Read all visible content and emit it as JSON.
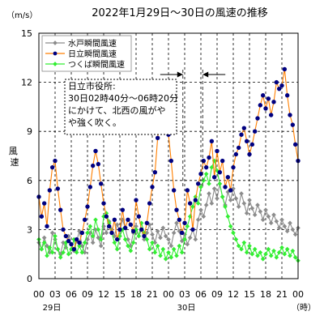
{
  "chart_data": {
    "type": "line",
    "title": "2022年1月29日～30日の風速の推移",
    "unit_label": "（m/s）",
    "ylabel": "風速",
    "xunit_label": "（時）",
    "ylim": [
      0,
      15
    ],
    "yticks": [
      0,
      3,
      6,
      9,
      12,
      15
    ],
    "grid": true,
    "x_ticks": [
      "00",
      "03",
      "06",
      "09",
      "12",
      "15",
      "18",
      "21",
      "00",
      "03",
      "06",
      "09",
      "12",
      "15",
      "18",
      "21",
      "00"
    ],
    "date_labels": [
      "29日",
      "30日"
    ],
    "legend_position": "top-left",
    "annotation": {
      "lines": [
        "日立市役所:",
        "30日02時40分～06時20分",
        "にかけて、北西の風がや",
        "や強く吹く。"
      ]
    },
    "x": [
      0.0,
      0.5,
      1.0,
      1.5,
      2.0,
      2.5,
      3.0,
      3.5,
      4.0,
      4.5,
      5.0,
      5.5,
      6.0,
      6.5,
      7.0,
      7.5,
      8.0,
      8.5,
      9.0,
      9.5,
      10.0,
      10.5,
      11.0,
      11.5,
      12.0,
      12.5,
      13.0,
      13.5,
      14.0,
      14.5,
      15.0,
      15.5,
      16.0,
      16.5,
      17.0,
      17.5,
      18.0,
      18.5,
      19.0,
      19.5,
      20.0,
      20.5,
      21.0,
      21.5,
      22.0,
      22.5,
      23.0,
      23.5,
      24.0,
      24.5,
      25.0,
      25.5,
      26.0,
      26.5,
      27.0,
      27.5,
      28.0,
      28.5,
      29.0,
      29.5,
      30.0,
      30.5,
      31.0,
      31.5,
      32.0,
      32.5,
      33.0,
      33.5,
      34.0,
      34.5,
      35.0,
      35.5,
      36.0,
      36.5,
      37.0,
      37.5,
      38.0,
      38.5,
      39.0,
      39.5,
      40.0,
      40.5,
      41.0,
      41.5,
      42.0,
      42.5,
      43.0,
      43.5,
      44.0,
      44.5,
      45.0,
      45.5,
      46.0,
      46.5,
      47.0,
      47.5,
      48.0
    ],
    "series": [
      {
        "name": "水戸瞬間風速",
        "color": "#8c8c8c",
        "values": [
          2.2,
          1.8,
          2.5,
          2.0,
          1.6,
          2.8,
          2.4,
          1.8,
          1.5,
          2.2,
          1.9,
          2.6,
          2.1,
          1.7,
          2.3,
          2.9,
          2.0,
          1.6,
          2.4,
          2.8,
          2.2,
          3.0,
          2.5,
          2.0,
          3.2,
          2.8,
          3.5,
          3.0,
          2.6,
          3.3,
          2.9,
          3.6,
          3.1,
          2.4,
          2.0,
          2.8,
          3.2,
          2.6,
          3.0,
          2.4,
          2.8,
          3.3,
          2.7,
          2.2,
          2.9,
          2.5,
          3.1,
          2.6,
          2.4,
          2.0,
          2.8,
          3.4,
          2.9,
          2.3,
          2.7,
          2.1,
          2.5,
          3.0,
          2.4,
          3.6,
          4.2,
          3.8,
          4.5,
          5.2,
          4.6,
          5.5,
          4.9,
          5.8,
          5.0,
          4.5,
          5.3,
          4.8,
          5.5,
          4.9,
          4.4,
          5.2,
          4.6,
          4.0,
          4.8,
          4.3,
          3.9,
          4.5,
          4.1,
          3.6,
          4.2,
          3.8,
          3.4,
          3.9,
          3.5,
          3.1,
          3.6,
          3.2,
          2.9,
          3.4,
          3.0,
          2.7,
          3.1
        ]
      },
      {
        "name": "日立瞬間風速",
        "color": "#ff7f00",
        "marker": "#000080",
        "values": [
          5.0,
          3.8,
          4.6,
          3.2,
          5.4,
          6.8,
          7.2,
          5.5,
          4.2,
          3.0,
          2.6,
          2.3,
          2.1,
          1.8,
          2.4,
          2.2,
          2.8,
          3.6,
          4.4,
          5.6,
          6.9,
          7.8,
          7.0,
          5.8,
          4.6,
          3.8,
          3.2,
          2.8,
          3.6,
          2.4,
          3.0,
          4.2,
          3.1,
          3.6,
          3.3,
          2.9,
          4.8,
          3.8,
          3.0,
          2.6,
          3.4,
          4.6,
          5.6,
          6.5,
          8.6,
          10.2,
          9.8,
          10.6,
          8.8,
          7.2,
          5.4,
          4.2,
          3.6,
          2.8,
          3.4,
          5.4,
          4.6,
          3.0,
          4.8,
          5.8,
          6.4,
          7.2,
          6.8,
          7.4,
          8.4,
          6.2,
          7.8,
          6.5,
          7.2,
          5.6,
          6.2,
          5.4,
          6.8,
          7.6,
          8.0,
          8.8,
          9.2,
          8.4,
          7.6,
          8.2,
          9.0,
          9.8,
          10.6,
          11.2,
          10.4,
          11.0,
          10.0,
          10.8,
          12.0,
          11.6,
          11.8,
          12.8,
          11.2,
          10.0,
          9.4,
          8.2,
          7.2
        ]
      },
      {
        "name": "つくば瞬間風速",
        "color": "#33ee33",
        "values": [
          2.4,
          1.8,
          2.2,
          1.4,
          1.9,
          1.6,
          2.6,
          1.8,
          1.3,
          1.6,
          2.2,
          1.5,
          1.8,
          2.4,
          1.6,
          2.0,
          1.6,
          2.2,
          2.8,
          3.2,
          2.6,
          3.6,
          3.0,
          2.4,
          3.8,
          4.0,
          3.4,
          2.8,
          2.2,
          1.8,
          2.6,
          3.0,
          2.4,
          2.0,
          1.7,
          2.2,
          3.0,
          2.6,
          3.4,
          2.8,
          2.4,
          1.8,
          2.2,
          1.6,
          2.0,
          1.4,
          1.8,
          1.2,
          1.6,
          1.3,
          1.8,
          1.4,
          2.0,
          1.6,
          2.4,
          3.2,
          3.8,
          4.4,
          5.0,
          4.6,
          5.6,
          6.0,
          6.4,
          5.8,
          6.8,
          7.2,
          6.6,
          5.8,
          5.0,
          4.4,
          3.8,
          3.2,
          2.8,
          2.4,
          2.0,
          1.8,
          2.2,
          1.6,
          2.0,
          1.5,
          1.8,
          1.4,
          1.6,
          1.2,
          1.5,
          1.8,
          1.4,
          1.7,
          1.3,
          1.6,
          1.9,
          1.5,
          1.8,
          1.4,
          1.7,
          1.3,
          1.1
        ]
      }
    ]
  }
}
